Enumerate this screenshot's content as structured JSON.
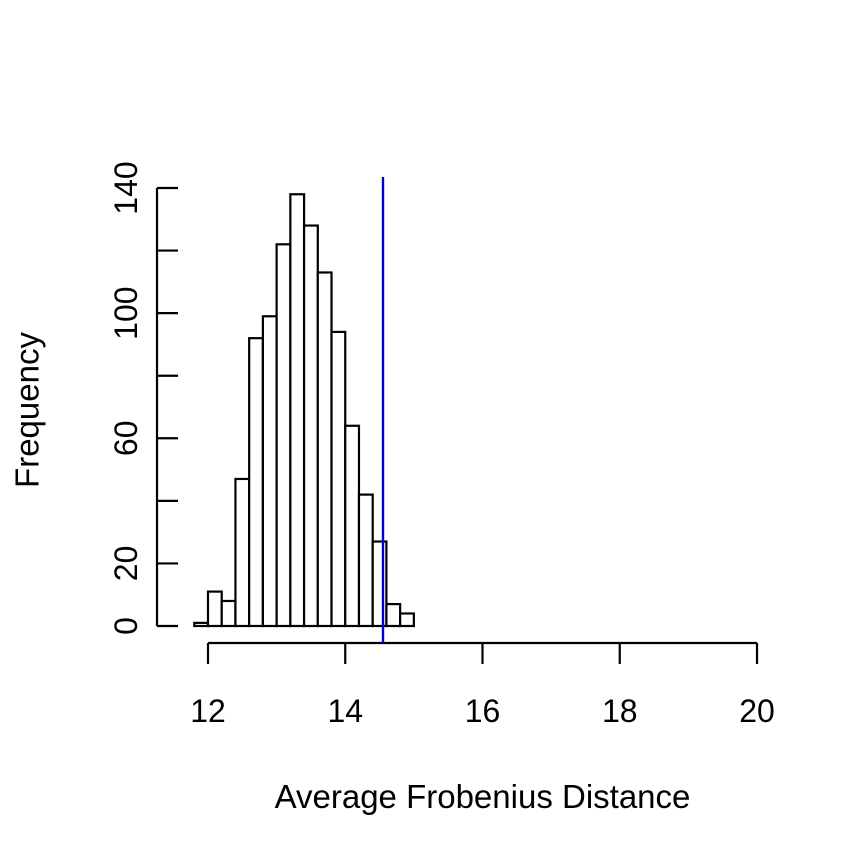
{
  "chart_data": {
    "type": "histogram",
    "title": "",
    "xlabel": "Average Frobenius Distance",
    "ylabel": "Frequency",
    "xlim": [
      12,
      20
    ],
    "ylim": [
      0,
      140
    ],
    "x_ticks": [
      12,
      14,
      16,
      18,
      20
    ],
    "y_ticks": [
      0,
      20,
      60,
      100,
      140
    ],
    "bin_width": 0.2,
    "bins": [
      {
        "start": 11.8,
        "end": 12.0,
        "count": 1
      },
      {
        "start": 12.0,
        "end": 12.2,
        "count": 11
      },
      {
        "start": 12.2,
        "end": 12.4,
        "count": 8
      },
      {
        "start": 12.4,
        "end": 12.6,
        "count": 47
      },
      {
        "start": 12.6,
        "end": 12.8,
        "count": 92
      },
      {
        "start": 12.8,
        "end": 13.0,
        "count": 99
      },
      {
        "start": 13.0,
        "end": 13.2,
        "count": 122
      },
      {
        "start": 13.2,
        "end": 13.4,
        "count": 138
      },
      {
        "start": 13.4,
        "end": 13.6,
        "count": 128
      },
      {
        "start": 13.6,
        "end": 13.8,
        "count": 113
      },
      {
        "start": 13.8,
        "end": 14.0,
        "count": 94
      },
      {
        "start": 14.0,
        "end": 14.2,
        "count": 64
      },
      {
        "start": 14.2,
        "end": 14.4,
        "count": 42
      },
      {
        "start": 14.4,
        "end": 14.6,
        "count": 27
      },
      {
        "start": 14.6,
        "end": 14.8,
        "count": 7
      },
      {
        "start": 14.8,
        "end": 15.0,
        "count": 4
      }
    ],
    "reference_line": {
      "x": 14.55,
      "color": "#0000cc"
    },
    "bar_fill": "#ffffff",
    "bar_stroke": "#000000",
    "grid": false,
    "legend": "none"
  }
}
